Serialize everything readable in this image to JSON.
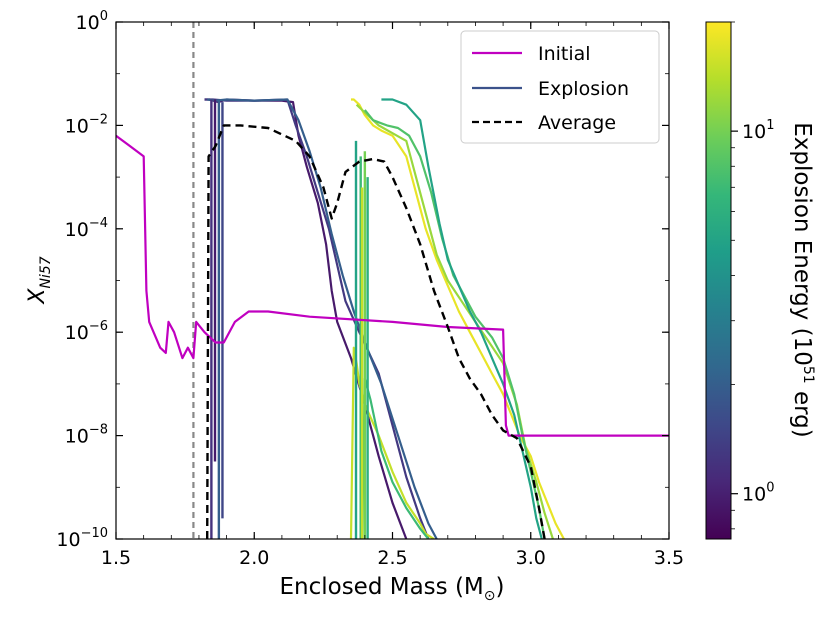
{
  "chart_data": {
    "type": "line",
    "xlabel": "Enclosed Mass (M",
    "xlabel_sub": "⊙",
    "xlabel_close": ")",
    "ylabel_main": "X",
    "ylabel_sub": "Ni57",
    "xlim": [
      1.5,
      3.5
    ],
    "ylim_log10": [
      -10,
      0
    ],
    "yscale": "log",
    "x_ticks": [
      {
        "value": 1.5,
        "label": "1.5"
      },
      {
        "value": 2.0,
        "label": "2.0"
      },
      {
        "value": 2.5,
        "label": "2.5"
      },
      {
        "value": 3.0,
        "label": "3.0"
      },
      {
        "value": 3.5,
        "label": "3.5"
      }
    ],
    "y_ticks": [
      {
        "exp": 0,
        "base": "10",
        "sup": "0"
      },
      {
        "exp": -2,
        "base": "10",
        "sup": "−2"
      },
      {
        "exp": -4,
        "base": "10",
        "sup": "−4"
      },
      {
        "exp": -6,
        "base": "10",
        "sup": "−6"
      },
      {
        "exp": -8,
        "base": "10",
        "sup": "−8"
      },
      {
        "exp": -10,
        "base": "10",
        "sup": "−10"
      }
    ],
    "vline_mass": 1.78,
    "legend_position": "top-right",
    "legend": [
      {
        "label": "Initial",
        "color": "#c000c0",
        "dash": "solid"
      },
      {
        "label": "Explosion",
        "color": "#3b528b",
        "dash": "solid"
      },
      {
        "label": "Average",
        "color": "#000000",
        "dash": "dashed"
      }
    ],
    "series": [
      {
        "name": "Initial",
        "color": "#c000c0",
        "x": [
          1.5,
          1.6,
          1.61,
          1.62,
          1.66,
          1.68,
          1.69,
          1.71,
          1.74,
          1.76,
          1.78,
          1.79,
          1.82,
          1.86,
          1.89,
          1.93,
          1.98,
          2.05,
          2.2,
          2.5,
          2.7,
          2.9,
          2.91,
          2.92,
          2.93,
          3.1,
          3.5
        ],
        "log_y": [
          -2.2,
          -2.6,
          -5.2,
          -5.8,
          -6.3,
          -6.4,
          -5.8,
          -6.0,
          -6.5,
          -6.3,
          -6.5,
          -5.8,
          -6.0,
          -6.2,
          -6.2,
          -5.8,
          -5.6,
          -5.6,
          -5.7,
          -5.8,
          -5.9,
          -5.95,
          -7.8,
          -8.0,
          -8.0,
          -8.0,
          -8.0
        ]
      },
      {
        "name": "Average",
        "color": "#000000",
        "x": [
          1.83,
          1.835,
          1.86,
          1.89,
          1.95,
          2.05,
          2.15,
          2.2,
          2.25,
          2.28,
          2.3,
          2.33,
          2.38,
          2.43,
          2.47,
          2.5,
          2.55,
          2.6,
          2.65,
          2.7,
          2.74,
          2.78,
          2.82,
          2.86,
          2.9,
          2.95,
          3.0,
          3.03,
          3.05
        ],
        "log_y": [
          -10.0,
          -2.6,
          -2.4,
          -2.0,
          -2.0,
          -2.05,
          -2.3,
          -2.6,
          -3.2,
          -3.8,
          -3.5,
          -2.9,
          -2.7,
          -2.65,
          -2.7,
          -3.0,
          -3.6,
          -4.3,
          -5.2,
          -5.9,
          -6.5,
          -6.9,
          -7.2,
          -7.6,
          -7.9,
          -8.05,
          -8.6,
          -9.4,
          -10.0
        ]
      }
    ],
    "explosion_models": [
      {
        "energy": 0.95,
        "x": [
          1.82,
          1.83,
          1.84,
          1.85,
          1.87,
          1.9,
          2.0,
          2.1,
          2.14,
          2.16,
          2.19,
          2.23,
          2.26,
          2.28,
          2.3,
          2.35,
          2.4,
          2.45,
          2.5,
          2.55
        ],
        "log_y": [
          -1.5,
          -1.5,
          -1.5,
          -1.52,
          -1.55,
          -1.5,
          -1.52,
          -1.52,
          -1.55,
          -2.2,
          -2.8,
          -3.5,
          -4.3,
          -5.2,
          -5.8,
          -6.5,
          -7.4,
          -8.4,
          -9.3,
          -10.0
        ]
      },
      {
        "energy": 1.3,
        "x": [
          1.82,
          1.85,
          1.9,
          2.0,
          2.12,
          2.15,
          2.19,
          2.23,
          2.27,
          2.3,
          2.33,
          2.38,
          2.45,
          2.5,
          2.55,
          2.6,
          2.63
        ],
        "log_y": [
          -1.5,
          -1.5,
          -1.52,
          -1.52,
          -1.5,
          -2.0,
          -2.6,
          -3.3,
          -4.0,
          -4.7,
          -5.4,
          -6.0,
          -6.8,
          -7.8,
          -8.8,
          -9.6,
          -10.0
        ]
      },
      {
        "energy": 2.0,
        "x": [
          1.83,
          1.86,
          1.9,
          2.0,
          2.12,
          2.16,
          2.2,
          2.24,
          2.28,
          2.32,
          2.36,
          2.4,
          2.46,
          2.52,
          2.58,
          2.63,
          2.66
        ],
        "log_y": [
          -1.5,
          -1.52,
          -1.5,
          -1.52,
          -1.5,
          -1.9,
          -2.5,
          -3.2,
          -4.1,
          -4.9,
          -5.6,
          -6.2,
          -7.0,
          -8.0,
          -9.0,
          -9.7,
          -10.0
        ]
      },
      {
        "energy": 15.0,
        "x": [
          2.35,
          2.36,
          2.37,
          2.38,
          2.4,
          2.45,
          2.5,
          2.55,
          2.6,
          2.62,
          2.65
        ],
        "log_y": [
          -10.0,
          -6.3,
          -6.6,
          -7.0,
          -7.4,
          -8.0,
          -8.7,
          -9.3,
          -9.7,
          -9.9,
          -10.0
        ]
      },
      {
        "energy": 7.0,
        "x": [
          2.39,
          2.4,
          2.42,
          2.44,
          2.46,
          2.5,
          2.55,
          2.6,
          2.63
        ],
        "log_y": [
          -10.0,
          -6.9,
          -7.3,
          -7.8,
          -8.3,
          -8.9,
          -9.4,
          -9.8,
          -10.0
        ]
      },
      {
        "energy": 18.0,
        "x": [
          2.35,
          2.36,
          2.38,
          2.4,
          2.43,
          2.46,
          2.5,
          2.55,
          2.58,
          2.62,
          2.66,
          2.7,
          2.74,
          2.78,
          2.82,
          2.86,
          2.9,
          2.93,
          2.96,
          3.0,
          3.03,
          3.06,
          3.09,
          3.12
        ],
        "log_y": [
          -1.5,
          -1.5,
          -1.6,
          -1.8,
          -2.0,
          -2.1,
          -2.2,
          -2.6,
          -3.2,
          -4.0,
          -4.6,
          -5.1,
          -5.6,
          -6.0,
          -6.4,
          -6.8,
          -7.2,
          -7.6,
          -8.0,
          -8.4,
          -8.9,
          -9.3,
          -9.7,
          -10.0
        ]
      },
      {
        "energy": 12.0,
        "x": [
          2.37,
          2.4,
          2.45,
          2.5,
          2.55,
          2.58,
          2.62,
          2.66,
          2.7,
          2.75,
          2.8,
          2.85,
          2.9,
          2.95,
          2.98,
          3.02,
          3.05,
          3.08
        ],
        "log_y": [
          -1.6,
          -1.75,
          -2.0,
          -2.15,
          -2.3,
          -2.9,
          -3.7,
          -4.5,
          -5.0,
          -5.4,
          -5.8,
          -6.2,
          -6.6,
          -7.4,
          -8.2,
          -8.9,
          -9.5,
          -10.0
        ]
      },
      {
        "energy": 8.0,
        "x": [
          2.4,
          2.43,
          2.48,
          2.52,
          2.56,
          2.6,
          2.64,
          2.68,
          2.72,
          2.76,
          2.8,
          2.86,
          2.9,
          2.94,
          2.97,
          3.0,
          3.03,
          3.05
        ],
        "log_y": [
          -1.7,
          -1.9,
          -2.0,
          -2.05,
          -2.2,
          -2.6,
          -3.3,
          -4.2,
          -4.9,
          -5.3,
          -5.7,
          -6.1,
          -6.5,
          -7.2,
          -8.0,
          -8.7,
          -9.4,
          -10.0
        ]
      },
      {
        "energy": 5.0,
        "x": [
          2.46,
          2.5,
          2.55,
          2.6,
          2.63,
          2.67,
          2.7,
          2.74,
          2.78,
          2.82,
          2.86,
          2.9,
          2.94,
          2.97,
          3.0,
          3.02,
          3.04
        ],
        "log_y": [
          -1.5,
          -1.5,
          -1.6,
          -1.9,
          -2.8,
          -3.9,
          -4.6,
          -5.1,
          -5.6,
          -6.0,
          -6.5,
          -7.0,
          -7.6,
          -8.3,
          -9.0,
          -9.6,
          -10.0
        ]
      }
    ],
    "explosion_spikes": [
      {
        "energy": 1.2,
        "x": 1.845,
        "log_y_top": -1.5,
        "log_y_bottom": -10.0
      },
      {
        "energy": 0.95,
        "x": 1.858,
        "log_y_top": -1.5,
        "log_y_bottom": -8.5
      },
      {
        "energy": 2.0,
        "x": 1.872,
        "log_y_top": -1.5,
        "log_y_bottom": -10.0
      },
      {
        "energy": 1.5,
        "x": 1.885,
        "log_y_top": -1.55,
        "log_y_bottom": -9.6
      },
      {
        "energy": 5.0,
        "x": 2.368,
        "log_y_top": -2.3,
        "log_y_bottom": -10.0
      },
      {
        "energy": 7.0,
        "x": 2.385,
        "log_y_top": -2.6,
        "log_y_bottom": -10.0
      },
      {
        "energy": 15.0,
        "x": 2.39,
        "log_y_top": -3.2,
        "log_y_bottom": -10.0
      },
      {
        "energy": 10.0,
        "x": 2.4,
        "log_y_top": -2.5,
        "log_y_bottom": -10.0
      },
      {
        "energy": 6.0,
        "x": 2.41,
        "log_y_top": -3.0,
        "log_y_bottom": -10.0
      }
    ],
    "colorbar": {
      "label_main": "Explosion Energy (10",
      "label_sup": "51",
      "label_end": " erg)",
      "scale": "log",
      "range": [
        0.75,
        20
      ],
      "ticks": [
        {
          "value": 1,
          "base": "10",
          "sup": "0"
        },
        {
          "value": 10,
          "base": "10",
          "sup": "1"
        }
      ],
      "colormap": [
        "#440154",
        "#482878",
        "#3e4989",
        "#31688e",
        "#26828e",
        "#1f9e89",
        "#35b779",
        "#6ece58",
        "#b5de2b",
        "#fde725"
      ]
    }
  }
}
